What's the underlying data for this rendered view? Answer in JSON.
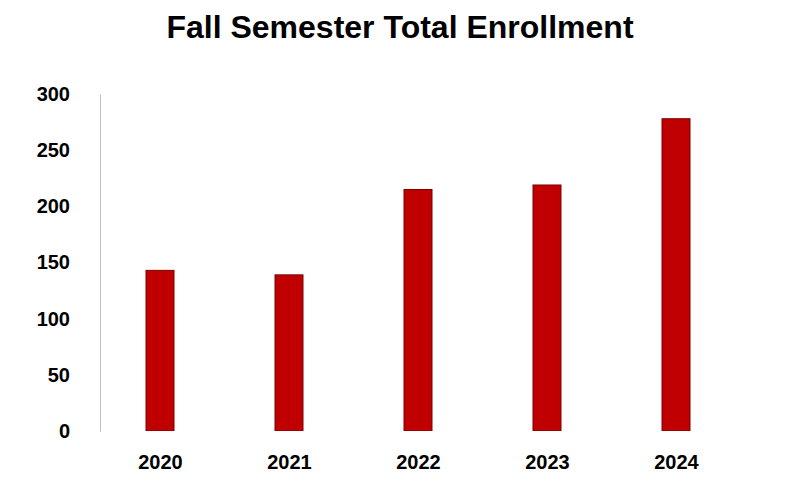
{
  "chart_data": {
    "type": "bar",
    "title": "Fall Semester Total Enrollment",
    "categories": [
      "2020",
      "2021",
      "2022",
      "2023",
      "2024"
    ],
    "values": [
      143,
      139,
      215,
      219,
      278
    ],
    "color": "#c00000",
    "ylim": [
      0,
      300
    ],
    "yticks": [
      0,
      50,
      100,
      150,
      200,
      250,
      300
    ],
    "grid": false
  }
}
